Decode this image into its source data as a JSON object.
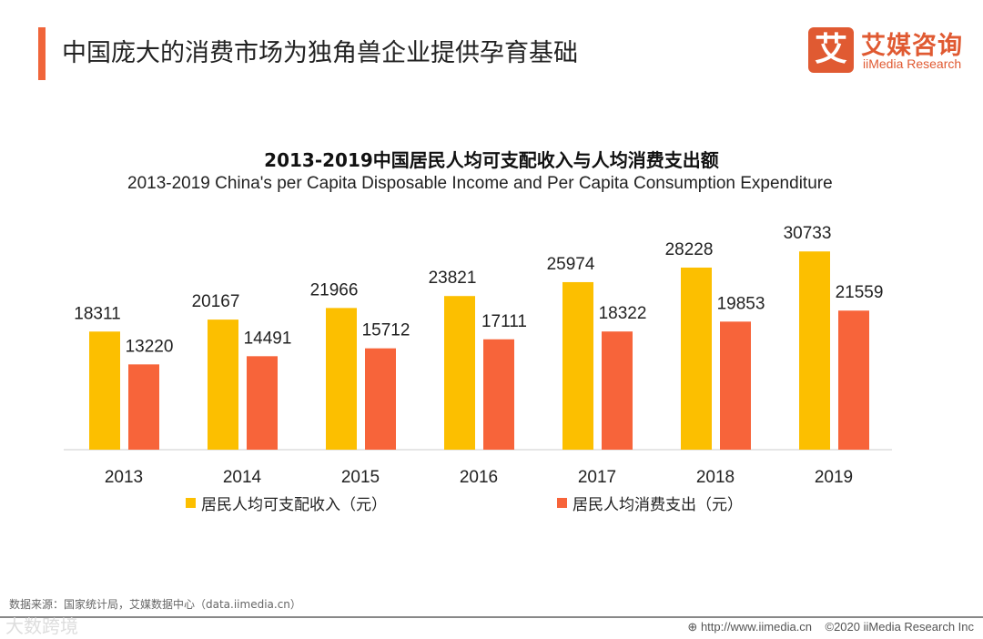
{
  "header": {
    "title": "中国庞大的消费市场为独角兽企业提供孕育基础",
    "logo_mark": "艾",
    "logo_cn": "艾媒咨询",
    "logo_en": "iiMedia Research"
  },
  "chart_data": {
    "type": "bar",
    "title": "2013-2019中国居民人均可支配收入与人均消费支出额",
    "subtitle": "2013-2019 China's per Capita Disposable Income and Per Capita Consumption Expenditure",
    "categories": [
      "2013",
      "2014",
      "2015",
      "2016",
      "2017",
      "2018",
      "2019"
    ],
    "series": [
      {
        "name": "居民人均可支配收入（元）",
        "color": "#fcbf00",
        "values": [
          18311,
          20167,
          21966,
          23821,
          25974,
          28228,
          30733
        ]
      },
      {
        "name": "居民人均消费支出（元）",
        "color": "#f7643a",
        "values": [
          13220,
          14491,
          15712,
          17111,
          18322,
          19853,
          21559
        ]
      }
    ],
    "ylim": [
      0,
      35000
    ],
    "grid": false,
    "legend": "bottom"
  },
  "footer": {
    "source": "数据来源：国家统计局，艾媒数据中心（data.iimedia.cn）",
    "watermark": "大数跨境",
    "url": "http://www.iimedia.cn",
    "copyright": "©2020  iiMedia Research  Inc"
  }
}
